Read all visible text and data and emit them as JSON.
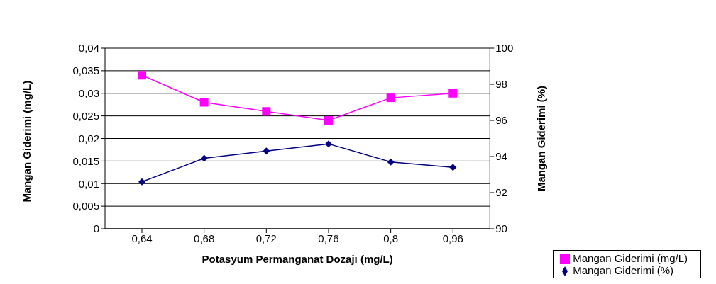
{
  "chart_data": {
    "type": "line",
    "xlabel": "Potasyum Permanganat Dozajı (mg/L)",
    "ylabel": "Mangan Giderimi (mg/L)",
    "y2label": "Mangan Giderimi (%)",
    "categories": [
      "0,64",
      "0,68",
      "0,72",
      "0,76",
      "0,8",
      "0,96"
    ],
    "series": [
      {
        "name": "Mangan Giderimi (mg/L)",
        "color": "#ff00ff",
        "marker": "square",
        "values": [
          0.034,
          0.028,
          0.026,
          0.024,
          0.029,
          0.03
        ]
      },
      {
        "name": "Mangan Giderimi (%)",
        "color": "#000080",
        "marker": "diamond",
        "axis": "y2",
        "values": [
          92.6,
          93.9,
          94.3,
          94.7,
          93.7,
          93.4
        ]
      }
    ],
    "ylim": [
      0,
      0.04
    ],
    "yticks": [
      {
        "value": 0,
        "label": "0"
      },
      {
        "value": 0.005,
        "label": "0,005"
      },
      {
        "value": 0.01,
        "label": "0,01"
      },
      {
        "value": 0.015,
        "label": "0,015"
      },
      {
        "value": 0.02,
        "label": "0,02"
      },
      {
        "value": 0.025,
        "label": "0,025"
      },
      {
        "value": 0.03,
        "label": "0,03"
      },
      {
        "value": 0.035,
        "label": "0,035"
      },
      {
        "value": 0.04,
        "label": "0,04"
      }
    ],
    "y2lim": [
      90,
      100
    ],
    "y2ticks": [
      90,
      92,
      94,
      96,
      98,
      100
    ],
    "grid": "y",
    "legend": "bottom right",
    "line_style": "solid"
  }
}
